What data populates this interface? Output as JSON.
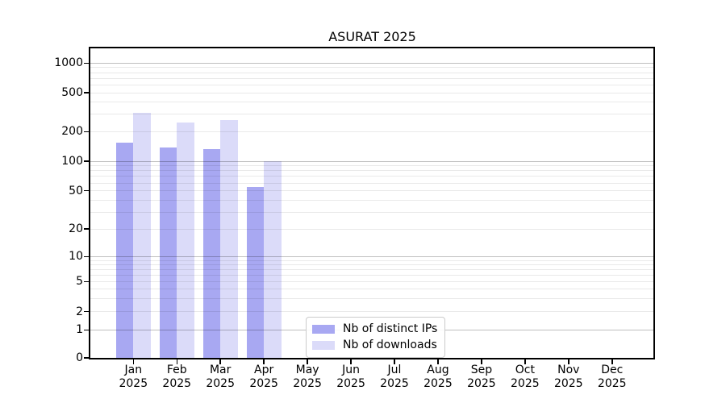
{
  "title": "ASURAT 2025",
  "chart_data": {
    "type": "bar",
    "title": "ASURAT 2025",
    "categories": [
      "Jan 2025",
      "Feb 2025",
      "Mar 2025",
      "Apr 2025",
      "May 2025",
      "Jun 2025",
      "Jul 2025",
      "Aug 2025",
      "Sep 2025",
      "Oct 2025",
      "Nov 2025",
      "Dec 2025"
    ],
    "x_tick_months": [
      "Jan",
      "Feb",
      "Mar",
      "Apr",
      "May",
      "Jun",
      "Jul",
      "Aug",
      "Sep",
      "Oct",
      "Nov",
      "Dec"
    ],
    "x_tick_year": "2025",
    "series": [
      {
        "name": "Nb of distinct IPs",
        "key": "distinct-ips",
        "color": "#a8a8f2",
        "values": [
          155,
          139,
          133,
          55,
          0,
          0,
          0,
          0,
          0,
          0,
          0,
          0
        ]
      },
      {
        "name": "Nb of downloads",
        "key": "downloads",
        "color": "#dbdbf9",
        "values": [
          310,
          248,
          262,
          100,
          0,
          0,
          0,
          0,
          0,
          0,
          0,
          0
        ]
      }
    ],
    "yscale": "symlog",
    "yticks": [
      0,
      1,
      2,
      5,
      10,
      20,
      50,
      100,
      200,
      500,
      1000
    ],
    "ylim": [
      0,
      1400
    ],
    "grid": "both",
    "grid_major_at": [
      1,
      10,
      100,
      1000
    ],
    "grid_minor_at": [
      2,
      3,
      4,
      5,
      6,
      7,
      8,
      9,
      20,
      30,
      40,
      50,
      60,
      70,
      80,
      90,
      200,
      300,
      400,
      500,
      600,
      700,
      800,
      900
    ],
    "legend_position": "lower-center",
    "xlabel": "",
    "ylabel": ""
  },
  "colors": {
    "distinct_ips_bar": "#a8a8f2",
    "downloads_bar": "#dbdbf9",
    "spine": "#000000",
    "grid_major": "rgba(0,0,0,0.25)",
    "grid_minor": "rgba(0,0,0,0.085)",
    "legend_border": "#cbcbcb",
    "background": "#ffffff"
  }
}
